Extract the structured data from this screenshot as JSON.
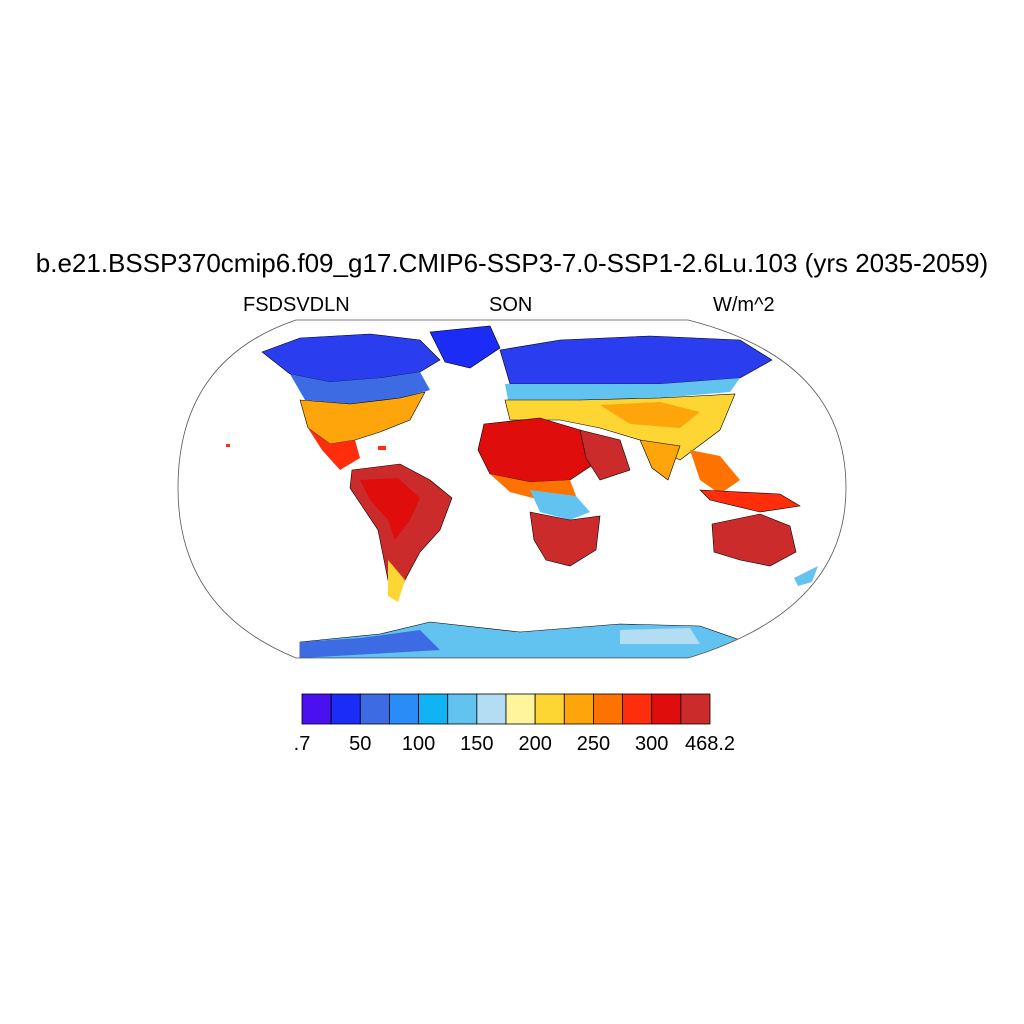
{
  "header": {
    "title": "b.e21.BSSP370cmip6.f09_g17.CMIP6-SSP3-7.0-SSP1-2.6Lu.103 (yrs 2035-2059)",
    "left_label": "FSDSVDLN",
    "center_label": "SON",
    "right_label": "W/m^2"
  },
  "colorbar": {
    "colors": [
      "#4b10f0",
      "#1a2cf5",
      "#3d6be3",
      "#2a8cf6",
      "#10b4f4",
      "#62c3f0",
      "#b3ddf2",
      "#fff59c",
      "#fed634",
      "#fea50c",
      "#fe7300",
      "#fe2e0c",
      "#e00d0d",
      "#cc2b2b"
    ],
    "labels": [
      ".7",
      "50",
      "100",
      "150",
      "200",
      "250",
      "300",
      "468.2"
    ]
  },
  "map": {
    "projection": "Robinson",
    "variable": "FSDSVDLN",
    "season": "SON",
    "units": "W/m^2",
    "colors": {
      "polar": "#2a3ef0",
      "high_lat": "#3d6be3",
      "mid_lat": "#62c3f0",
      "temperate": "#fed634",
      "subtropic": "#fe7300",
      "tropic": "#e00d0d",
      "hot": "#cc2b2b",
      "antarctic_ice": "#62c3f0",
      "antarctic_edge": "#3d6be3"
    }
  }
}
